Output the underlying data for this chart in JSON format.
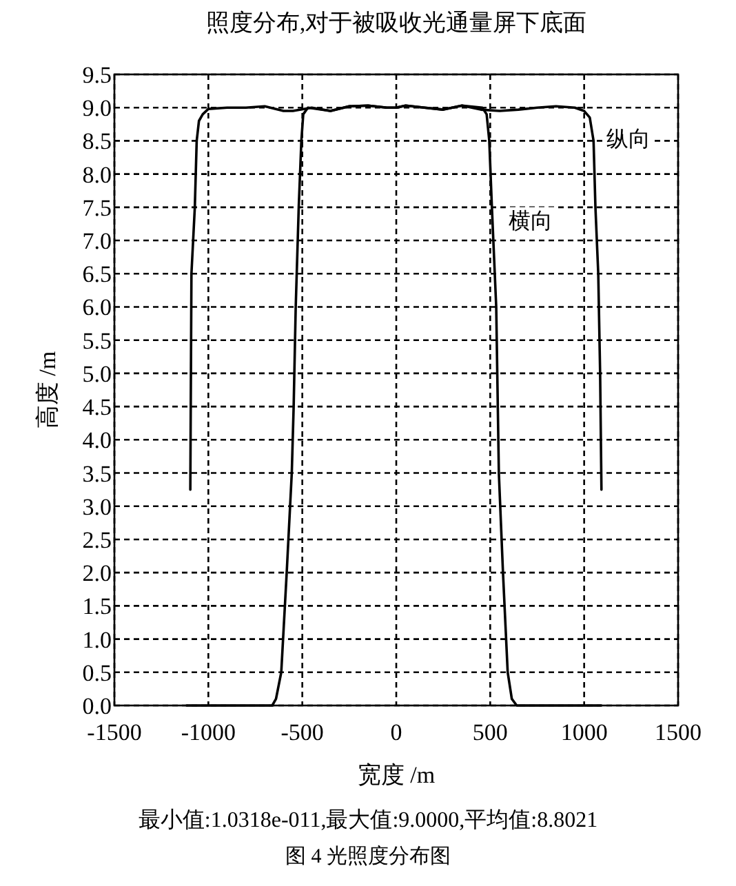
{
  "chart_data": {
    "type": "line",
    "title": "照度分布,对于被吸收光通量屏下底面",
    "xlabel": "宽度 /m",
    "ylabel": "高度 /m",
    "xlim": [
      -1500,
      1500
    ],
    "xticks": [
      -1500,
      -1000,
      -500,
      0,
      500,
      1000,
      1500
    ],
    "ylim": [
      0,
      9.5
    ],
    "yticks": [
      {
        "value": 0,
        "label": "0.0"
      },
      {
        "value": 0.5,
        "label": "0.5"
      },
      {
        "value": 1,
        "label": "1.0"
      },
      {
        "value": 1.5,
        "label": "1.5"
      },
      {
        "value": 2,
        "label": "2.0"
      },
      {
        "value": 2.5,
        "label": "2.5"
      },
      {
        "value": 3,
        "label": "3.0"
      },
      {
        "value": 3.5,
        "label": "3.5"
      },
      {
        "value": 4,
        "label": "4.0"
      },
      {
        "value": 4.5,
        "label": "4.5"
      },
      {
        "value": 5,
        "label": "5.0"
      },
      {
        "value": 5.5,
        "label": "5.5"
      },
      {
        "value": 6,
        "label": "6.0"
      },
      {
        "value": 6.5,
        "label": "6.5"
      },
      {
        "value": 7,
        "label": "7.0"
      },
      {
        "value": 7.5,
        "label": "7.5"
      },
      {
        "value": 8,
        "label": "8.0"
      },
      {
        "value": 8.5,
        "label": "8.5"
      },
      {
        "value": 9,
        "label": "9.0"
      },
      {
        "value": 9.5,
        "label": "9.5"
      }
    ],
    "grid": true,
    "series": [
      {
        "name": "纵向",
        "color": "#000000",
        "x": [
          -1096,
          -1090,
          -1072,
          -1062,
          -1050,
          -1030,
          -1000,
          -900,
          -800,
          -700,
          -600,
          -550,
          -450,
          -350,
          -250,
          -150,
          -50,
          0,
          50,
          150,
          250,
          350,
          450,
          550,
          650,
          750,
          850,
          950,
          1000,
          1030,
          1050,
          1060,
          1075,
          1085,
          1092
        ],
        "values": [
          3.25,
          6.5,
          7.5,
          8.5,
          8.8,
          8.9,
          8.98,
          9.0,
          9.0,
          9.02,
          8.95,
          8.95,
          9.0,
          8.95,
          9.02,
          9.03,
          9.0,
          9.0,
          9.03,
          9.0,
          8.97,
          9.03,
          8.97,
          8.95,
          8.97,
          9.0,
          9.02,
          9.0,
          8.95,
          8.85,
          8.5,
          7.5,
          6.5,
          5.0,
          3.25
        ]
      },
      {
        "name": "横向",
        "color": "#000000",
        "x": [
          -1115,
          -660,
          -640,
          -612,
          -583,
          -556,
          -546,
          -535,
          -519,
          -505,
          -495,
          -470,
          -350,
          -250,
          -150,
          -50,
          0,
          50,
          150,
          250,
          350,
          458,
          481,
          495,
          509,
          532,
          546,
          568,
          593,
          615,
          641,
          1090
        ],
        "values": [
          0,
          0,
          0.1,
          0.5,
          2.0,
          3.5,
          4.5,
          6.0,
          7.5,
          8.5,
          8.9,
          9.0,
          8.95,
          9.02,
          9.03,
          9.0,
          9.0,
          9.03,
          9.0,
          8.97,
          9.03,
          9.0,
          8.9,
          8.5,
          7.5,
          6.0,
          3.5,
          2.0,
          0.5,
          0.1,
          0,
          0
        ]
      }
    ],
    "annotations": [
      "最小值:1.0318e-011,最大值:9.0000,平均值:8.8021",
      "图 4  光照度分布图"
    ]
  }
}
